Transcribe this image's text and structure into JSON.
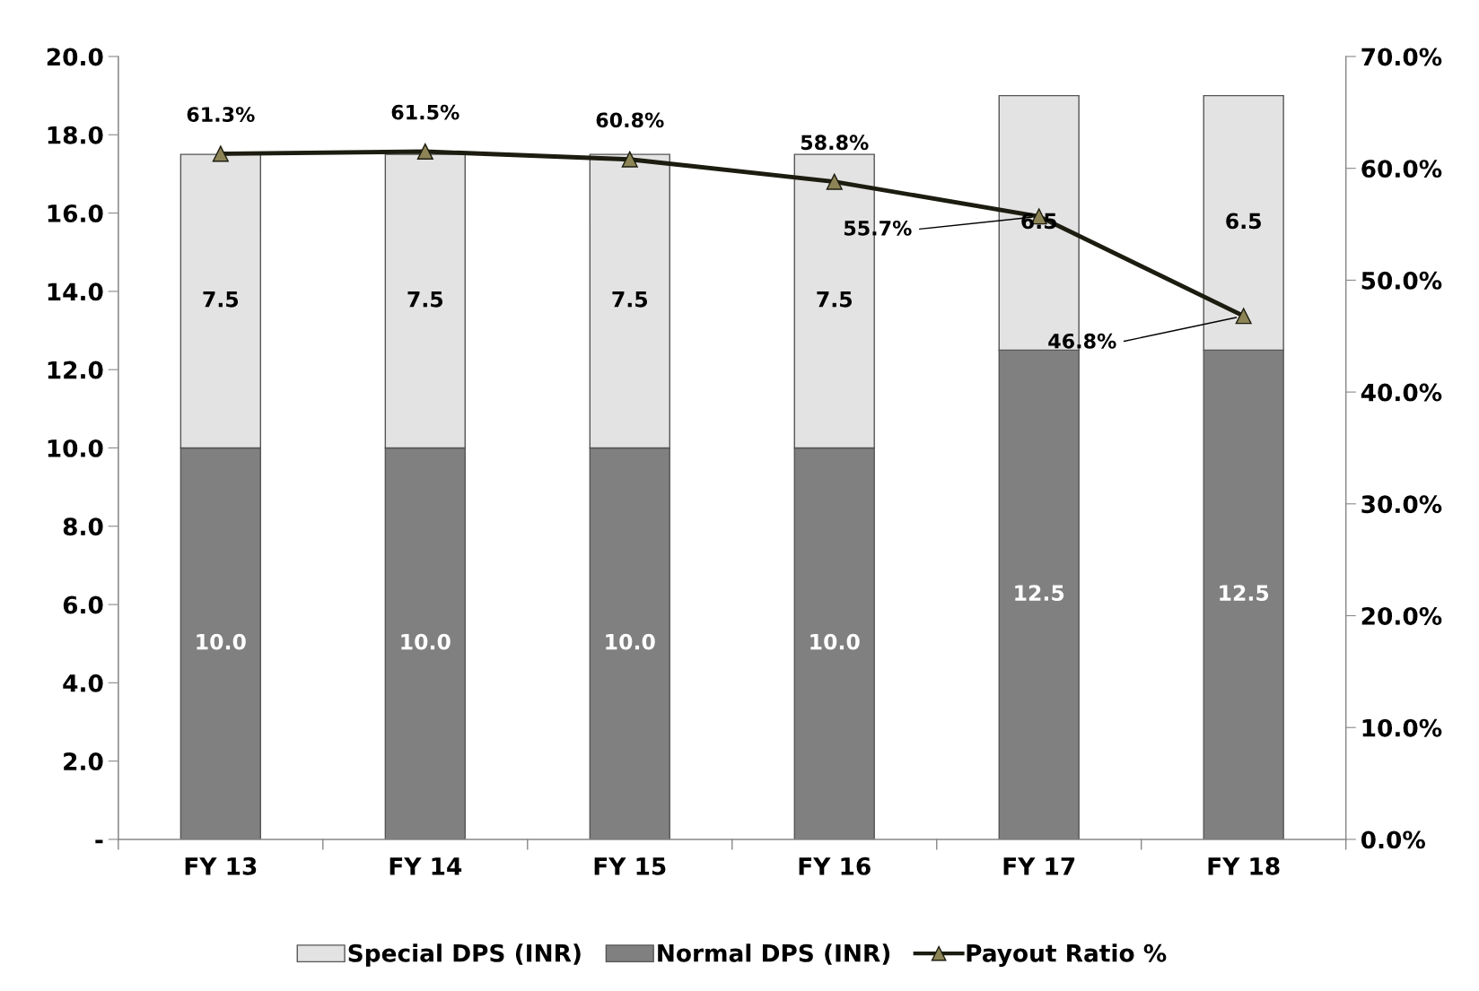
{
  "chart_data": {
    "type": "bar",
    "stacked": true,
    "categories": [
      "FY 13",
      "FY 14",
      "FY 15",
      "FY 16",
      "FY 17",
      "FY 18"
    ],
    "series": [
      {
        "name": "Normal DPS (INR)",
        "color": "#808080",
        "values": [
          10.0,
          10.0,
          10.0,
          10.0,
          12.5,
          12.5
        ],
        "value_labels": [
          "10.0",
          "10.0",
          "10.0",
          "10.0",
          "12.5",
          "12.5"
        ]
      },
      {
        "name": "Special DPS (INR)",
        "color": "#e3e3e3",
        "values": [
          7.5,
          7.5,
          7.5,
          7.5,
          6.5,
          6.5
        ],
        "value_labels": [
          "7.5",
          "7.5",
          "7.5",
          "7.5",
          "6.5",
          "6.5"
        ]
      },
      {
        "name": "Payout Ratio %",
        "type": "line",
        "axis": "y2",
        "color": "#1c1c10",
        "marker": "triangle",
        "values": [
          61.3,
          61.5,
          60.8,
          58.8,
          55.7,
          46.8
        ],
        "value_labels": [
          "61.3%",
          "61.5%",
          "60.8%",
          "58.8%",
          "55.7%",
          "46.8%"
        ]
      }
    ],
    "data_labels": true,
    "ylim": [
      0,
      20
    ],
    "yticks": [
      {
        "value": 0,
        "label": "-"
      },
      {
        "value": 2,
        "label": "2.0"
      },
      {
        "value": 4,
        "label": "4.0"
      },
      {
        "value": 6,
        "label": "6.0"
      },
      {
        "value": 8,
        "label": "8.0"
      },
      {
        "value": 10,
        "label": "10.0"
      },
      {
        "value": 12,
        "label": "12.0"
      },
      {
        "value": 14,
        "label": "14.0"
      },
      {
        "value": 16,
        "label": "16.0"
      },
      {
        "value": 18,
        "label": "18.0"
      },
      {
        "value": 20,
        "label": "20.0"
      }
    ],
    "y2lim": [
      0,
      70
    ],
    "y2ticks": [
      {
        "value": 0,
        "label": "0.0%"
      },
      {
        "value": 10,
        "label": "10.0%"
      },
      {
        "value": 20,
        "label": "20.0%"
      },
      {
        "value": 30,
        "label": "30.0%"
      },
      {
        "value": 40,
        "label": "40.0%"
      },
      {
        "value": 50,
        "label": "50.0%"
      },
      {
        "value": 60,
        "label": "60.0%"
      },
      {
        "value": 70,
        "label": "70.0%"
      }
    ],
    "grid": false,
    "legend": "bottom"
  }
}
